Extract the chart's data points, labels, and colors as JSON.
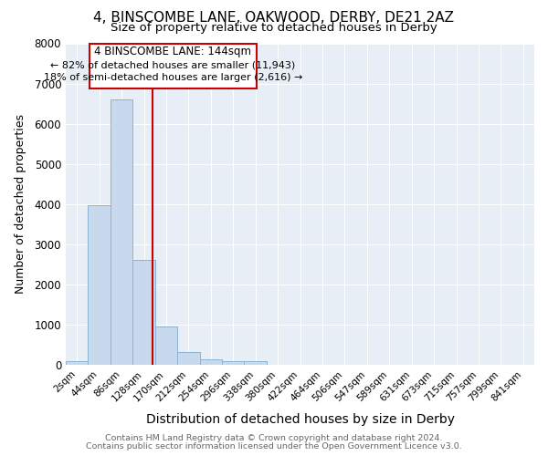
{
  "title": "4, BINSCOMBE LANE, OAKWOOD, DERBY, DE21 2AZ",
  "subtitle": "Size of property relative to detached houses in Derby",
  "xlabel": "Distribution of detached houses by size in Derby",
  "ylabel": "Number of detached properties",
  "bins": [
    "2sqm",
    "44sqm",
    "86sqm",
    "128sqm",
    "170sqm",
    "212sqm",
    "254sqm",
    "296sqm",
    "338sqm",
    "380sqm",
    "422sqm",
    "464sqm",
    "506sqm",
    "547sqm",
    "589sqm",
    "631sqm",
    "673sqm",
    "715sqm",
    "757sqm",
    "799sqm",
    "841sqm"
  ],
  "values": [
    100,
    3980,
    6600,
    2600,
    950,
    320,
    130,
    80,
    80,
    0,
    0,
    0,
    0,
    0,
    0,
    0,
    0,
    0,
    0,
    0,
    0
  ],
  "bar_color": "#c8d9ed",
  "bar_edge_color": "#8ab4d4",
  "vline_color": "#cc0000",
  "ylim": [
    0,
    8000
  ],
  "annotation_title": "4 BINSCOMBE LANE: 144sqm",
  "annotation_line1": "← 82% of detached houses are smaller (11,943)",
  "annotation_line2": "18% of semi-detached houses are larger (2,616) →",
  "annotation_box_color": "#cc0000",
  "background_color": "#e8eef5",
  "grid_color": "#ffffff",
  "title_fontsize": 11,
  "subtitle_fontsize": 9.5,
  "ylabel_fontsize": 9,
  "xlabel_fontsize": 10,
  "footer_line1": "Contains HM Land Registry data © Crown copyright and database right 2024.",
  "footer_line2": "Contains public sector information licensed under the Open Government Licence v3.0."
}
